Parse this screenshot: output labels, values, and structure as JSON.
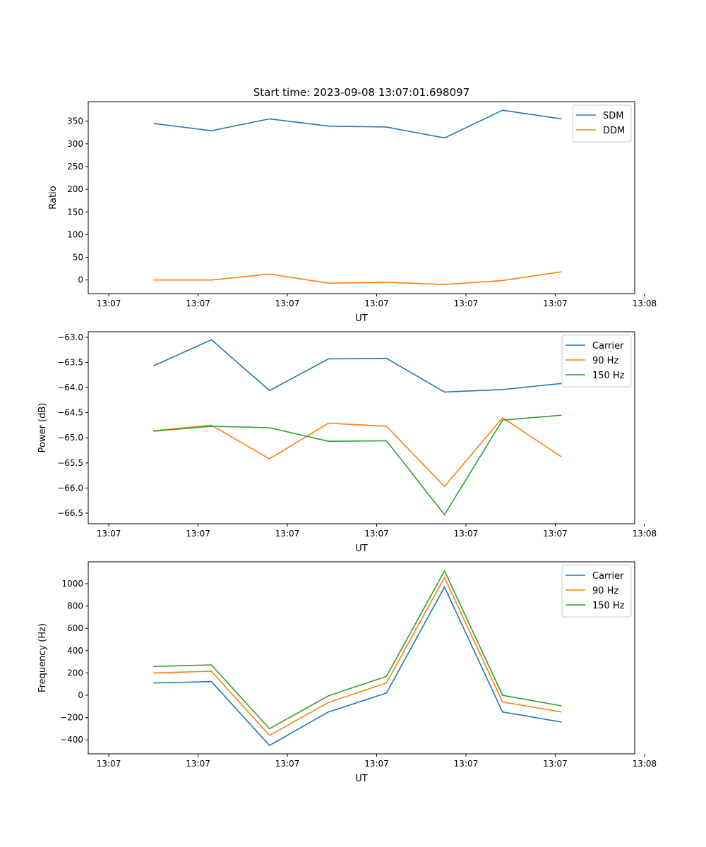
{
  "title": "Start time: 2023-09-08 13:07:01.698097",
  "colors": {
    "c0": "#1f77b4",
    "c1": "#ff7f0e",
    "c2": "#2ca02c"
  },
  "chart_data": [
    {
      "type": "line",
      "xlabel": "UT",
      "ylabel": "Ratio",
      "x_seconds_after_1307": [
        5.0,
        11.5,
        18.0,
        24.6,
        31.1,
        37.6,
        44.1,
        50.7
      ],
      "xlim": [
        -2.3,
        58.9
      ],
      "xticks": [
        0,
        10,
        20,
        30,
        40,
        50,
        60
      ],
      "xtick_labels": [
        "13:07",
        "13:07",
        "13:07",
        "13:07",
        "13:07",
        "13:07",
        "13:08"
      ],
      "ylim": [
        -30,
        393
      ],
      "yticks": [
        0,
        50,
        100,
        150,
        200,
        250,
        300,
        350
      ],
      "ytick_labels": [
        "0",
        "50",
        "100",
        "150",
        "200",
        "250",
        "300",
        "350"
      ],
      "legend": "top-right",
      "series": [
        {
          "name": "SDM",
          "values": [
            345,
            329,
            355,
            339,
            337,
            313,
            374,
            355
          ]
        },
        {
          "name": "DDM",
          "values": [
            0,
            0,
            13,
            -7,
            -5,
            -10,
            -1,
            18
          ]
        }
      ]
    },
    {
      "type": "line",
      "xlabel": "UT",
      "ylabel": "Power (dB)",
      "x_seconds_after_1307": [
        5.0,
        11.5,
        18.0,
        24.6,
        31.1,
        37.6,
        44.1,
        50.7
      ],
      "xlim": [
        -2.3,
        58.9
      ],
      "xticks": [
        0,
        10,
        20,
        30,
        40,
        50,
        60
      ],
      "xtick_labels": [
        "13:07",
        "13:07",
        "13:07",
        "13:07",
        "13:07",
        "13:07",
        "13:08"
      ],
      "ylim": [
        -66.71,
        -62.89
      ],
      "yticks": [
        -66.5,
        -66.0,
        -65.5,
        -65.0,
        -64.5,
        -64.0,
        -63.5,
        -63.0
      ],
      "ytick_labels": [
        "−66.5",
        "−66.0",
        "−65.5",
        "−65.0",
        "−64.5",
        "−64.0",
        "−63.5",
        "−63.0"
      ],
      "legend": "top-right",
      "series": [
        {
          "name": "Carrier",
          "values": [
            -63.57,
            -63.05,
            -64.06,
            -63.43,
            -63.42,
            -64.09,
            -64.04,
            -63.92
          ]
        },
        {
          "name": "90 Hz",
          "values": [
            -64.86,
            -64.75,
            -65.42,
            -64.71,
            -64.77,
            -65.97,
            -64.6,
            -65.38
          ]
        },
        {
          "name": "150 Hz",
          "values": [
            -64.87,
            -64.77,
            -64.8,
            -65.07,
            -65.06,
            -66.53,
            -64.65,
            -64.55
          ]
        }
      ]
    },
    {
      "type": "line",
      "xlabel": "UT",
      "ylabel": "Frequency (Hz)",
      "x_seconds_after_1307": [
        5.0,
        11.5,
        18.0,
        24.6,
        31.1,
        37.6,
        44.1,
        50.7
      ],
      "xlim": [
        -2.3,
        58.9
      ],
      "xticks": [
        0,
        10,
        20,
        30,
        40,
        50,
        60
      ],
      "xtick_labels": [
        "13:07",
        "13:07",
        "13:07",
        "13:07",
        "13:07",
        "13:07",
        "13:08"
      ],
      "ylim": [
        -525,
        1196
      ],
      "yticks": [
        -400,
        -200,
        0,
        200,
        400,
        600,
        800,
        1000
      ],
      "ytick_labels": [
        "−400",
        "−200",
        "0",
        "200",
        "400",
        "600",
        "800",
        "1000"
      ],
      "legend": "top-right",
      "series": [
        {
          "name": "Carrier",
          "values": [
            110,
            122,
            -450,
            -150,
            20,
            970,
            -150,
            -240
          ]
        },
        {
          "name": "90 Hz",
          "values": [
            200,
            215,
            -360,
            -65,
            110,
            1055,
            -60,
            -150
          ]
        },
        {
          "name": "150 Hz",
          "values": [
            258,
            272,
            -300,
            -5,
            170,
            1115,
            0,
            -95
          ]
        }
      ]
    }
  ]
}
